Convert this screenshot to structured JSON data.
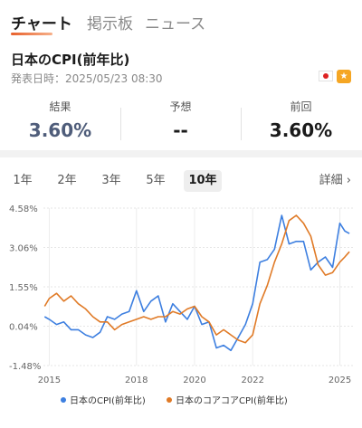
{
  "tabs": [
    {
      "label": "チャート"
    },
    {
      "label": "掲示板"
    },
    {
      "label": "ニュース"
    }
  ],
  "indicator": {
    "title": "日本のCPI(前年比)",
    "release": "発表日時：2025/05/23 08:30"
  },
  "stats": {
    "actual": {
      "label": "結果",
      "value": "3.60%"
    },
    "forecast": {
      "label": "予想",
      "value": "--"
    },
    "previous": {
      "label": "前回",
      "value": "3.60%"
    }
  },
  "ranges": [
    {
      "label": "1年"
    },
    {
      "label": "2年"
    },
    {
      "label": "3年"
    },
    {
      "label": "5年"
    },
    {
      "label": "10年"
    }
  ],
  "detail_label": "詳細 ›",
  "colors": {
    "accent": "#e8612c",
    "series1": "#3d7fe0",
    "series2": "#e07a26"
  },
  "chart_data": {
    "type": "line",
    "xlabel": "",
    "ylabel": "",
    "xlim": [
      2014.8,
      2025.45
    ],
    "ylim": [
      -1.48,
      4.58
    ],
    "yticks": [
      "4.58%",
      "3.06%",
      "1.55%",
      "0.04%",
      "-1.48%"
    ],
    "xticks": [
      2015,
      2018,
      2020,
      2022,
      2025
    ],
    "grid": true,
    "legend_position": "bottom",
    "series": [
      {
        "name": "日本のCPI(前年比)",
        "color": "#3d7fe0",
        "x": [
          2014.84,
          2015.0,
          2015.25,
          2015.5,
          2015.75,
          2016.0,
          2016.25,
          2016.5,
          2016.75,
          2017.0,
          2017.25,
          2017.5,
          2017.75,
          2018.0,
          2018.25,
          2018.5,
          2018.75,
          2019.0,
          2019.25,
          2019.5,
          2019.75,
          2020.0,
          2020.25,
          2020.5,
          2020.75,
          2021.0,
          2021.25,
          2021.5,
          2021.75,
          2022.0,
          2022.25,
          2022.5,
          2022.75,
          2023.0,
          2023.25,
          2023.5,
          2023.75,
          2024.0,
          2024.25,
          2024.5,
          2024.75,
          2025.0,
          2025.17,
          2025.33
        ],
        "y": [
          0.4,
          0.3,
          0.1,
          0.2,
          -0.1,
          -0.1,
          -0.3,
          -0.4,
          -0.2,
          0.4,
          0.3,
          0.5,
          0.6,
          1.4,
          0.6,
          1.0,
          1.2,
          0.2,
          0.9,
          0.6,
          0.3,
          0.8,
          0.1,
          0.2,
          -0.8,
          -0.7,
          -0.9,
          -0.4,
          0.1,
          0.9,
          2.5,
          2.6,
          3.0,
          4.3,
          3.2,
          3.3,
          3.3,
          2.2,
          2.5,
          2.7,
          2.3,
          4.0,
          3.7,
          3.6
        ]
      },
      {
        "name": "日本のコアコアCPI(前年比)",
        "color": "#e07a26",
        "x": [
          2014.84,
          2015.0,
          2015.25,
          2015.5,
          2015.75,
          2016.0,
          2016.25,
          2016.5,
          2016.75,
          2017.0,
          2017.25,
          2017.5,
          2017.75,
          2018.0,
          2018.25,
          2018.5,
          2018.75,
          2019.0,
          2019.25,
          2019.5,
          2019.75,
          2020.0,
          2020.25,
          2020.5,
          2020.75,
          2021.0,
          2021.25,
          2021.5,
          2021.75,
          2022.0,
          2022.25,
          2022.5,
          2022.75,
          2023.0,
          2023.25,
          2023.5,
          2023.75,
          2024.0,
          2024.25,
          2024.5,
          2024.75,
          2025.0,
          2025.17,
          2025.33
        ],
        "y": [
          0.8,
          1.1,
          1.3,
          1.0,
          1.2,
          0.9,
          0.7,
          0.4,
          0.2,
          0.2,
          -0.1,
          0.1,
          0.2,
          0.3,
          0.4,
          0.3,
          0.4,
          0.4,
          0.6,
          0.5,
          0.7,
          0.8,
          0.4,
          0.2,
          -0.3,
          -0.1,
          -0.3,
          -0.5,
          -0.6,
          -0.3,
          0.9,
          1.6,
          2.5,
          3.2,
          4.1,
          4.3,
          4.0,
          3.5,
          2.4,
          2.0,
          2.1,
          2.5,
          2.7,
          2.9
        ]
      }
    ]
  }
}
